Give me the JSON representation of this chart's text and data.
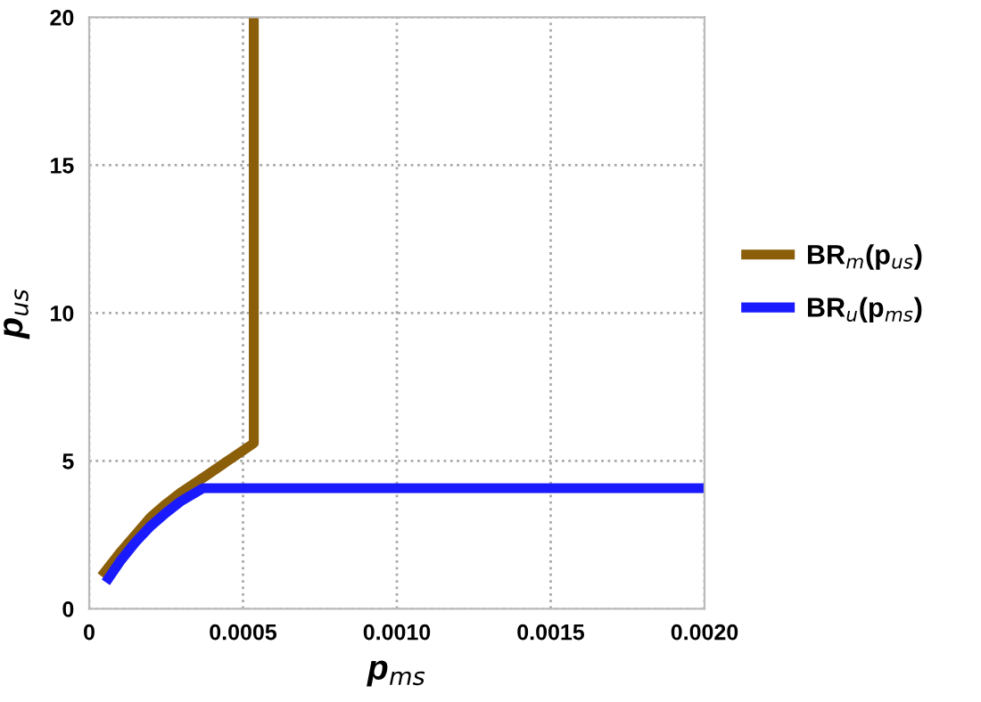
{
  "chart_data": {
    "type": "line",
    "xlabel": "p$_{ms}$",
    "ylabel": "p$_{us}$",
    "series": [
      {
        "name": "BR$_{m}$(p$_{us}$)",
        "color": "#8b5e0a",
        "x": [
          4e-05,
          0.0001,
          0.00015,
          0.0002,
          0.00025,
          0.0003,
          0.00038,
          0.00045,
          0.000535,
          0.000535
        ],
        "values": [
          1.1,
          1.9,
          2.5,
          3.1,
          3.55,
          3.95,
          4.5,
          5.0,
          5.6,
          20
        ]
      },
      {
        "name": "BR$_{u}$(p$_{ms}$)",
        "color": "#1a1aff",
        "x": [
          5.4e-05,
          0.0001,
          0.00015,
          0.0002,
          0.00025,
          0.0003,
          0.00037,
          0.002
        ],
        "values": [
          0.9,
          1.6,
          2.25,
          2.8,
          3.25,
          3.65,
          4.08,
          4.08
        ]
      }
    ],
    "xlim": [
      0,
      0.002
    ],
    "ylim": [
      0,
      20
    ],
    "xticks": [
      {
        "value": 0,
        "label": "0"
      },
      {
        "value": 0.0005,
        "label": "0.0005"
      },
      {
        "value": 0.001,
        "label": "0.0010"
      },
      {
        "value": 0.0015,
        "label": "0.0015"
      },
      {
        "value": 0.002,
        "label": "0.0020"
      }
    ],
    "yticks": [
      0,
      5,
      10,
      15,
      20
    ],
    "grid": true,
    "line_style": "solid",
    "legend": "right"
  }
}
